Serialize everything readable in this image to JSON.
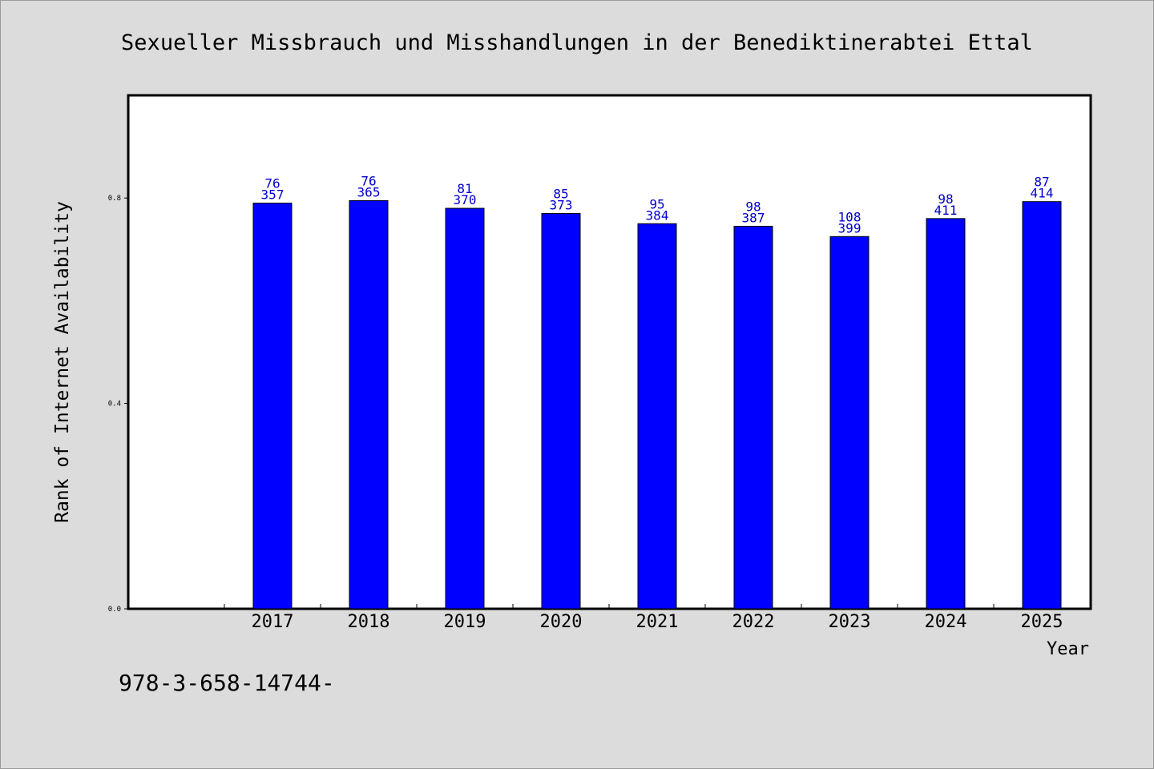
{
  "chart_data": {
    "type": "bar",
    "title": "Sexueller Missbrauch und Misshandlungen in der Benediktinerabtei Ettal",
    "xlabel": "Year",
    "ylabel": "Rank of Internet Availability",
    "ylim": [
      0,
      1.0
    ],
    "yticks": [
      "0.0",
      "0.4",
      "0.8"
    ],
    "categories": [
      "2017",
      "2018",
      "2019",
      "2020",
      "2021",
      "2022",
      "2023",
      "2024",
      "2025"
    ],
    "values": [
      0.79,
      0.795,
      0.78,
      0.77,
      0.75,
      0.745,
      0.725,
      0.76,
      0.793
    ],
    "label_top": [
      "76",
      "76",
      "81",
      "85",
      "95",
      "98",
      "108",
      "98",
      "87"
    ],
    "label_bottom": [
      "357",
      "365",
      "370",
      "373",
      "384",
      "387",
      "399",
      "411",
      "414"
    ],
    "bar_color": "#0000ff",
    "label_color": "#0000cc",
    "grid": false
  },
  "footer_text": "978-3-658-14744-"
}
